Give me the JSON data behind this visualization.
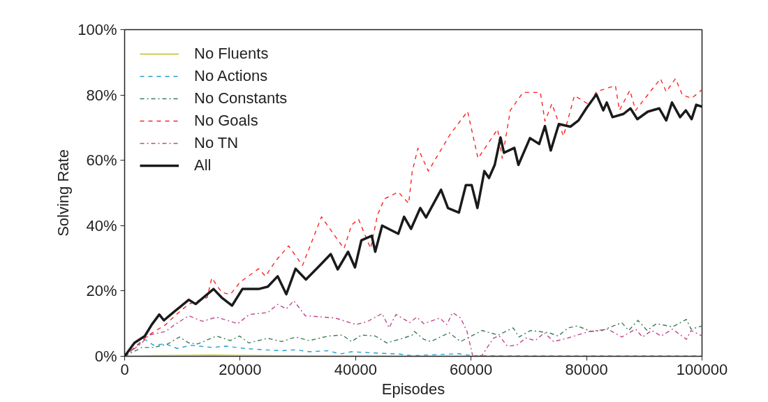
{
  "chart_data": {
    "type": "line",
    "xlabel": "Episodes",
    "ylabel": "Solving Rate",
    "xlim": [
      0,
      100000
    ],
    "ylim": [
      0,
      100
    ],
    "xticks": [
      0,
      20000,
      40000,
      60000,
      80000,
      100000
    ],
    "yticks": [
      {
        "value": 0,
        "label": "0%"
      },
      {
        "value": 20,
        "label": "20%"
      },
      {
        "value": 40,
        "label": "40%"
      },
      {
        "value": 60,
        "label": "60%"
      },
      {
        "value": 80,
        "label": "80%"
      },
      {
        "value": 100,
        "label": "100%"
      }
    ],
    "legend": "top left",
    "series": [
      {
        "name": "No Fluents",
        "color": "#bcbd22",
        "line_style": "solid",
        "x": [
          0,
          5000,
          10000,
          15000,
          20000,
          25000,
          30000,
          40000,
          60000
        ],
        "values": [
          0,
          0.2,
          0.3,
          0.4,
          0.3,
          0.2,
          0.1,
          0,
          0
        ]
      },
      {
        "name": "No Actions",
        "color": "#1f9fcf",
        "line_style": "dashed",
        "x": [
          0,
          3500,
          5000,
          7100,
          9100,
          11500,
          15100,
          17500,
          20800,
          24000,
          27200,
          29600,
          32000,
          35300,
          37300,
          39300,
          43400,
          47400,
          49800,
          54000,
          57800,
          60000,
          70000,
          80000,
          90000,
          100000
        ],
        "values": [
          0,
          5.2,
          3.4,
          3.8,
          2.4,
          3.4,
          2.7,
          3.1,
          2.4,
          2,
          1.7,
          2,
          1.4,
          1.7,
          0.7,
          1.4,
          1,
          0.7,
          0.2,
          0.5,
          0.8,
          0.2,
          0.1,
          0.1,
          0.1,
          0.1
        ]
      },
      {
        "name": "No Constants",
        "color": "#3d7a5a",
        "line_style": "dashdot",
        "x": [
          0,
          3000,
          5000,
          7500,
          9500,
          11100,
          12700,
          15900,
          18300,
          19900,
          21500,
          24800,
          27200,
          29600,
          32000,
          35300,
          37700,
          39300,
          41000,
          43400,
          45400,
          48200,
          49800,
          50200,
          51800,
          53000,
          56200,
          58200,
          61900,
          64700,
          67300,
          68300,
          70300,
          73500,
          75100,
          76800,
          78400,
          80800,
          82700,
          86100,
          87300,
          88900,
          90500,
          92100,
          94900,
          97300,
          98100,
          100000
        ],
        "values": [
          0,
          2.7,
          2.7,
          3.8,
          5.9,
          4.1,
          3.8,
          6.2,
          4.8,
          6.2,
          4.1,
          5.5,
          4.5,
          5.9,
          4.8,
          6.2,
          6.5,
          4.5,
          6.5,
          6.2,
          4.1,
          5.5,
          6.5,
          7.6,
          5.2,
          4.5,
          7.2,
          4.5,
          7.9,
          6.5,
          8.7,
          5.9,
          7.9,
          7.2,
          6.2,
          8.7,
          9.3,
          7.6,
          7.9,
          10.3,
          7.9,
          11,
          7.9,
          10,
          9,
          11.3,
          8.3,
          9.3
        ]
      },
      {
        "name": "No Goals",
        "color": "#ff2020",
        "line_style": "dashed",
        "x": [
          0,
          3900,
          7100,
          8700,
          11100,
          14300,
          15100,
          16800,
          18300,
          20000,
          23200,
          24400,
          26200,
          28400,
          30800,
          34100,
          36800,
          38000,
          39300,
          40500,
          42600,
          43800,
          45000,
          47400,
          49200,
          49800,
          50800,
          52600,
          56400,
          59400,
          61200,
          64600,
          65400,
          66800,
          69000,
          72000,
          72800,
          74000,
          76000,
          77900,
          80500,
          81700,
          85000,
          85700,
          87500,
          88500,
          92800,
          93800,
          95400,
          96600,
          98200,
          100000
        ],
        "values": [
          0,
          6.2,
          9.7,
          12.4,
          16,
          18,
          24,
          19.6,
          18.9,
          22.7,
          26.8,
          24.5,
          29.3,
          33.8,
          27.8,
          42.7,
          35.9,
          33,
          40.2,
          42,
          33,
          43.3,
          48.2,
          50.3,
          46.8,
          56.5,
          63.7,
          56.7,
          68,
          75,
          60.6,
          69.5,
          60.6,
          75.3,
          80.8,
          80.8,
          72,
          77.3,
          67.4,
          79.8,
          77,
          81,
          82.9,
          75.3,
          81.4,
          75.3,
          85,
          81,
          85,
          80,
          79,
          81.6
        ]
      },
      {
        "name": "No TN",
        "color": "#c0468e",
        "line_style": "dashdot",
        "x": [
          0,
          3000,
          4200,
          7100,
          8700,
          11100,
          13500,
          15900,
          19600,
          21600,
          24800,
          26500,
          28000,
          29300,
          31300,
          34500,
          36500,
          40100,
          42100,
          44600,
          45800,
          47000,
          49400,
          50600,
          51800,
          54600,
          55800,
          56800,
          58200,
          59300,
          60300,
          61900,
          63900,
          64900,
          66300,
          67900,
          69500,
          71100,
          72700,
          74300,
          76800,
          80400,
          83700,
          86100,
          88500,
          89700,
          91300,
          92900,
          94900,
          97300,
          98100,
          100000
        ],
        "values": [
          0,
          4.1,
          6.5,
          7.6,
          9.7,
          12.4,
          10.7,
          12,
          10,
          12.8,
          13.4,
          15.9,
          14.5,
          17,
          12.4,
          12,
          11.7,
          9.7,
          10.7,
          13.1,
          8.7,
          12.8,
          10.3,
          12,
          10,
          11.7,
          9.7,
          13.4,
          11.7,
          7.6,
          0,
          0.3,
          5.6,
          6.2,
          3.1,
          3.4,
          5.6,
          4.8,
          7.2,
          4.5,
          5.6,
          7.6,
          8.3,
          5.9,
          8.3,
          5.9,
          7.9,
          6.2,
          8.3,
          5.2,
          7.9,
          6.2
        ]
      },
      {
        "name": "All",
        "color": "#1a1a1a",
        "line_style": "solid",
        "x": [
          0,
          1700,
          3500,
          4700,
          6000,
          6800,
          8000,
          11100,
          12300,
          15400,
          16800,
          18600,
          20400,
          23200,
          24800,
          26500,
          28000,
          29600,
          31400,
          33700,
          35700,
          36900,
          38700,
          39900,
          41000,
          42800,
          43400,
          44600,
          47400,
          48400,
          49600,
          51200,
          52200,
          54800,
          56000,
          57900,
          59100,
          60100,
          61100,
          62300,
          63100,
          64100,
          65100,
          65700,
          67500,
          68200,
          70200,
          71800,
          72800,
          73800,
          75200,
          77200,
          78600,
          80000,
          81700,
          82900,
          83500,
          84500,
          86400,
          87600,
          88800,
          90600,
          92600,
          93800,
          94800,
          96200,
          97200,
          98200,
          99000,
          100000
        ],
        "values": [
          0,
          4.1,
          6.2,
          9.7,
          12.8,
          11,
          12.8,
          17.3,
          16,
          20.6,
          18,
          15.5,
          20.6,
          20.6,
          21.3,
          24.5,
          19,
          26.8,
          23.5,
          27.6,
          31.3,
          26.6,
          32,
          27.2,
          35.5,
          36.9,
          32,
          40,
          37.5,
          42.7,
          39,
          45.4,
          42.5,
          51,
          45.4,
          44,
          52.4,
          52.4,
          45.4,
          56.7,
          54.6,
          58.6,
          67,
          62.3,
          63.8,
          58.6,
          66.8,
          65,
          70.5,
          63,
          71.1,
          70.3,
          72.2,
          76,
          80.2,
          75.3,
          77.7,
          73.2,
          74.2,
          75.9,
          72.6,
          74.9,
          75.9,
          72.2,
          77.7,
          73.2,
          75.3,
          72.6,
          77,
          76.4
        ]
      }
    ]
  }
}
